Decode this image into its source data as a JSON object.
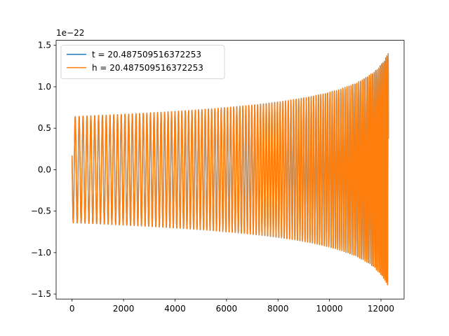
{
  "chart_data": {
    "type": "line",
    "title": "",
    "xlabel": "",
    "ylabel": "",
    "xlim": [
      -620,
      12900
    ],
    "ylim": [
      -1.56,
      1.56
    ],
    "y_offset_text": "1e−22",
    "x_ticks": [
      0,
      2000,
      4000,
      6000,
      8000,
      10000,
      12000
    ],
    "x_tick_labels": [
      "0",
      "2000",
      "4000",
      "6000",
      "8000",
      "10000",
      "12000"
    ],
    "y_ticks": [
      -1.5,
      -1.0,
      -0.5,
      0.0,
      0.5,
      1.0,
      1.5
    ],
    "y_tick_labels": [
      "−1.5",
      "−1.0",
      "−0.5",
      "0.0",
      "0.5",
      "1.0",
      "1.5"
    ],
    "grid": false,
    "legend_position": "upper left",
    "waveform": {
      "x_start": 0,
      "x_end": 12290,
      "initial_value": 0.17,
      "amplitude_start": 0.64,
      "amplitude_peak": 1.41,
      "cycles": 115
    },
    "series": [
      {
        "name": "t = 20.487509516372253",
        "color": "#1f77b4"
      },
      {
        "name": "h = 20.487509516372253",
        "color": "#ff7f0e"
      }
    ]
  }
}
